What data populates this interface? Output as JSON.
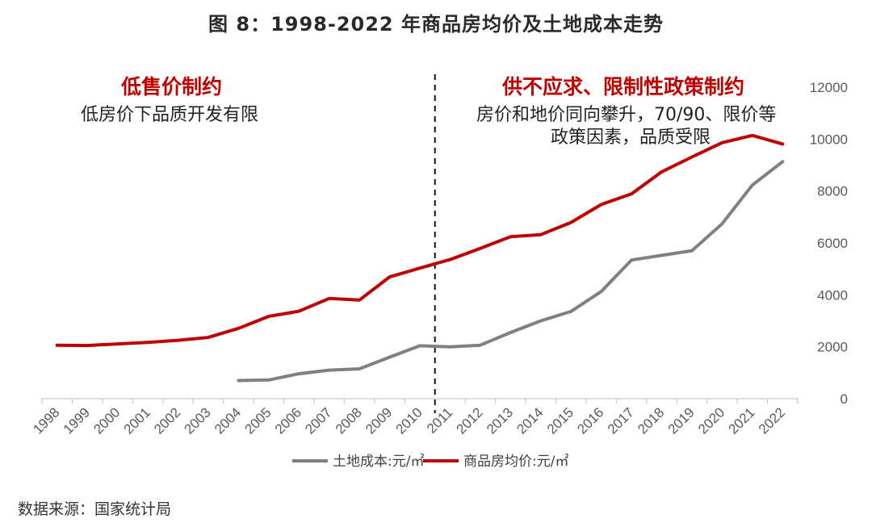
{
  "chart_data": {
    "type": "line",
    "title": "图 8：1998-2022 年商品房均价及土地成本走势",
    "categories": [
      "1998",
      "1999",
      "2000",
      "2001",
      "2002",
      "2003",
      "2004",
      "2005",
      "2006",
      "2007",
      "2008",
      "2009",
      "2010",
      "2011",
      "2012",
      "2013",
      "2014",
      "2015",
      "2016",
      "2017",
      "2018",
      "2019",
      "2020",
      "2021",
      "2022"
    ],
    "series": [
      {
        "name": "土地成本:元/㎡",
        "color": "#808080",
        "values": [
          null,
          null,
          null,
          null,
          null,
          null,
          700,
          720,
          960,
          1100,
          1150,
          1600,
          2040,
          2000,
          2060,
          2550,
          3000,
          3360,
          4130,
          5340,
          5520,
          5700,
          6740,
          8230,
          9130
        ]
      },
      {
        "name": "商品房均价:元/㎡",
        "color": "#c00000",
        "values": [
          2060,
          2050,
          2110,
          2170,
          2250,
          2360,
          2710,
          3170,
          3370,
          3860,
          3800,
          4690,
          5030,
          5360,
          5790,
          6240,
          6320,
          6790,
          7480,
          7890,
          8740,
          9310,
          9860,
          10140,
          9810
        ]
      }
    ],
    "ylim": [
      0,
      12000
    ],
    "yticks": [
      "0",
      "2000",
      "4000",
      "6000",
      "8000",
      "10000",
      "12000"
    ],
    "divider_after": "2010",
    "legend_position": "bottom",
    "annotations": {
      "left_heading": "低售价制约",
      "left_text": "低房价下品质开发有限",
      "right_heading": "供不应求、限制性政策制约",
      "right_text_line1": "房价和地价同向攀升，70/90、限价等",
      "right_text_line2": "政策因素，品质受限"
    }
  },
  "source": "数据来源：国家统计局"
}
